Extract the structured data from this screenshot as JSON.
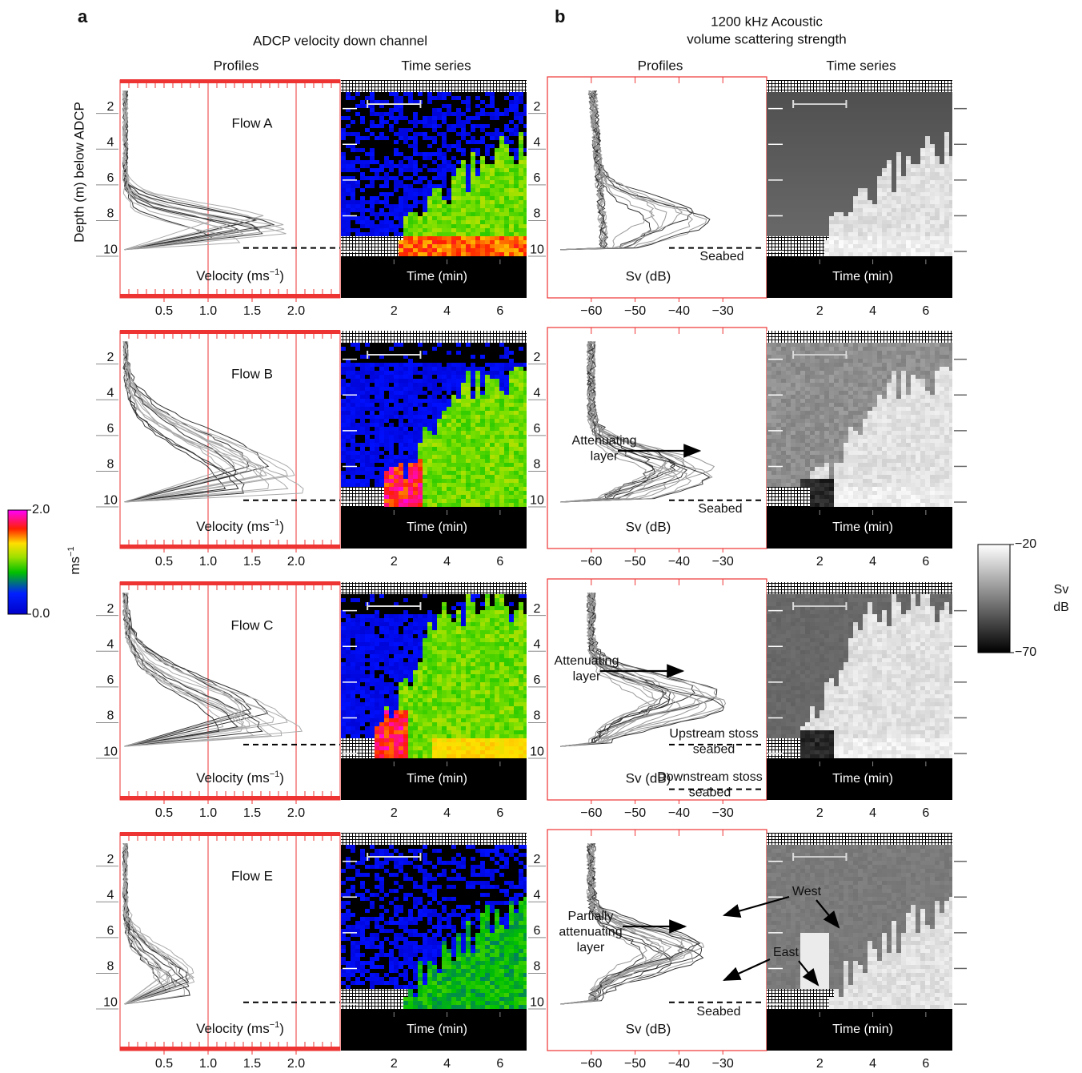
{
  "panel_labels": {
    "a": "a",
    "b": "b"
  },
  "titles": {
    "a": "ADCP velocity down channel",
    "b": [
      "1200 kHz Acoustic",
      "volume scattering strength"
    ]
  },
  "column_titles": [
    "Profiles",
    "Time series",
    "Profiles",
    "Time series"
  ],
  "y_label": "Depth (m) below ADCP",
  "depth_axis": {
    "lim": [
      0.4,
      12.6
    ],
    "ticks": [
      2,
      4,
      6,
      8,
      10
    ]
  },
  "velocity_axis": {
    "lim": [
      0,
      2.5
    ],
    "ticks": [
      {
        "value": 0.5,
        "label": "0.5"
      },
      {
        "value": 1.0,
        "label": "1.0"
      },
      {
        "value": 1.5,
        "label": "1.5"
      },
      {
        "value": 2.0,
        "label": "2.0"
      }
    ],
    "label": [
      "Velocity (ms",
      "−1",
      ")"
    ],
    "ref_lines": [
      1.0,
      2.0
    ]
  },
  "time_axis": {
    "lim": [
      0,
      7
    ],
    "ticks": [
      2,
      4,
      6
    ],
    "label": "Time (min)"
  },
  "sv_axis": {
    "lim": [
      -70,
      -20
    ],
    "ticks": [
      {
        "value": -60,
        "label": "−60"
      },
      {
        "value": -50,
        "label": "−50"
      },
      {
        "value": -40,
        "label": "−40"
      },
      {
        "value": -30,
        "label": "−30"
      }
    ],
    "label": "Sv (dB)"
  },
  "velocity_colorbar": {
    "lim": [
      0,
      2
    ],
    "ticks": [
      {
        "value": 2,
        "label": "2.0"
      },
      {
        "value": 0,
        "label": "0.0"
      }
    ],
    "unit": [
      "ms",
      "−1"
    ]
  },
  "sv_colorbar": {
    "lim": [
      -70,
      -20
    ],
    "ticks": [
      {
        "value": -20,
        "label": "−20"
      },
      {
        "value": -70,
        "label": "−70"
      }
    ],
    "unit": [
      "Sv",
      "dB"
    ]
  },
  "flows": [
    {
      "name": "Flow A",
      "seabed_depth": [
        9.8
      ],
      "annotations": [
        {
          "lines": [
            "Seabed"
          ]
        }
      ]
    },
    {
      "name": "Flow B",
      "seabed_depth": [
        9.9
      ],
      "annotations": [
        {
          "lines": [
            "Attenuating",
            "layer"
          ]
        },
        {
          "lines": [
            "Seabed"
          ]
        }
      ]
    },
    {
      "name": "Flow C",
      "seabed_depth": [
        9.5,
        12.0
      ],
      "annotations": [
        {
          "lines": [
            "Attenuating",
            "layer"
          ]
        },
        {
          "lines": [
            "Upstream stoss",
            "seabed"
          ]
        },
        {
          "lines": [
            "Downstream stoss",
            "seabed"
          ]
        }
      ]
    },
    {
      "name": "Flow E",
      "seabed_depth": [
        9.9
      ],
      "annotations": [
        {
          "lines": [
            "Partially",
            "attenuating",
            "layer"
          ]
        },
        {
          "lines": [
            "Seabed"
          ]
        },
        {
          "lines": [
            "West"
          ]
        },
        {
          "lines": [
            "East"
          ]
        }
      ]
    }
  ]
}
